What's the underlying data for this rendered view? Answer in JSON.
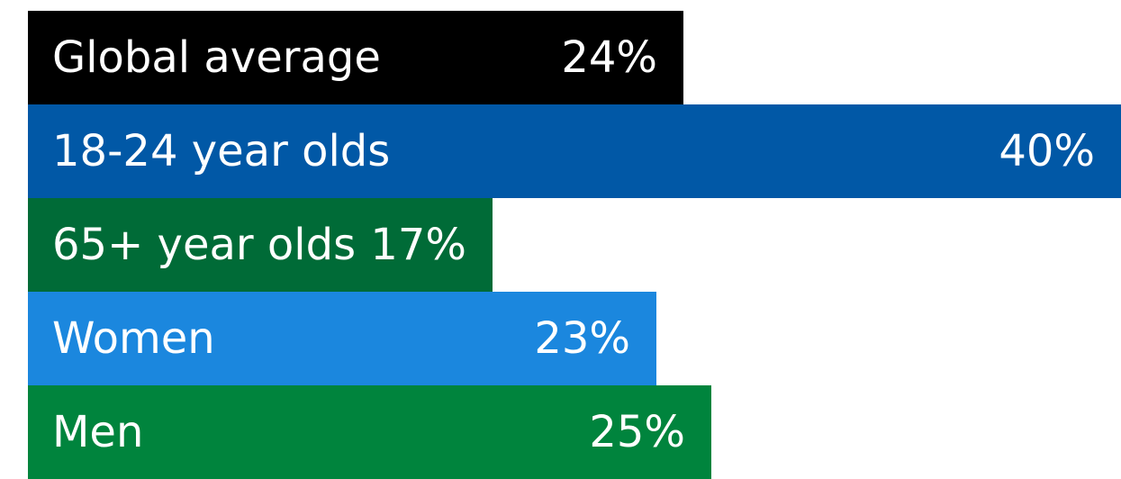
{
  "chart_data": {
    "type": "bar",
    "orientation": "horizontal",
    "title": "",
    "xlabel": "",
    "ylabel": "",
    "categories": [
      "Global average",
      "18-24 year olds",
      "65+ year olds",
      "Women",
      "Men"
    ],
    "values": [
      24,
      40,
      17,
      23,
      25
    ],
    "value_labels": [
      "24%",
      "40%",
      "17%",
      "23%",
      "25%"
    ],
    "xlim": [
      0,
      40
    ],
    "colors": [
      "#000000",
      "#0158a6",
      "#006b37",
      "#1b87de",
      "#00843d"
    ],
    "grid": false,
    "legend": "none"
  }
}
